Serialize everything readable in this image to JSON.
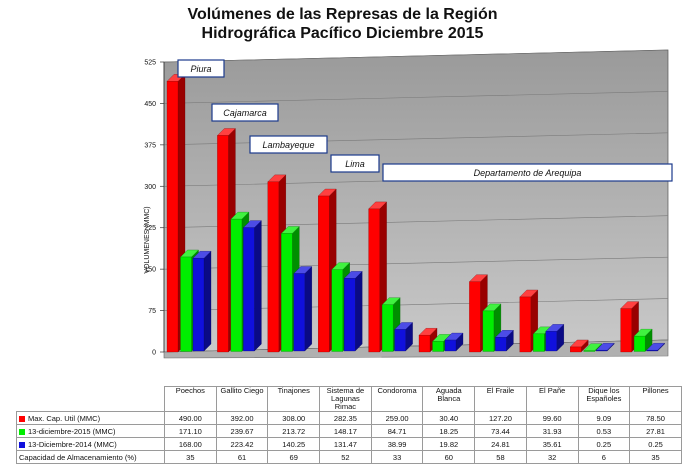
{
  "chart_data": {
    "type": "bar",
    "title_line1": "Volúmenes de las Represas de la Región",
    "title_line2": "Hidrográfica Pacífico Diciembre 2015",
    "ylabel": "VOLUMENES (MMC)",
    "ylim": [
      0,
      525
    ],
    "yticks": [
      "0",
      "75",
      "150",
      "225",
      "300",
      "375",
      "450",
      "525"
    ],
    "categories": [
      "Poechos",
      "Gallito Ciego",
      "Tinajones",
      "Sistema de Lagunas Rimac",
      "Condoroma",
      "Aguada Blanca",
      "El Fraile",
      "El Pañe",
      "Dique los Españoles",
      "Pillones"
    ],
    "series": [
      {
        "name": "Max. Cap. Util (MMC)",
        "color": "#ff0000",
        "values": [
          490.0,
          392.0,
          308.0,
          282.35,
          259.0,
          30.4,
          127.2,
          99.6,
          9.09,
          78.5
        ],
        "labels": [
          "490.00",
          "392.00",
          "308.00",
          "282.35",
          "259.00",
          "30.40",
          "127.20",
          "99.60",
          "9.09",
          "78.50"
        ]
      },
      {
        "name": "13-diciembre-2015 (MMC)",
        "color": "#00ee00",
        "values": [
          171.1,
          239.67,
          213.72,
          148.17,
          84.71,
          18.25,
          73.44,
          31.93,
          0.53,
          27.81
        ],
        "labels": [
          "171.10",
          "239.67",
          "213.72",
          "148.17",
          "84.71",
          "18.25",
          "73.44",
          "31.93",
          "0.53",
          "27.81"
        ]
      },
      {
        "name": "13-Diciembre-2014 (MMC)",
        "color": "#1010dd",
        "values": [
          168.0,
          223.42,
          140.25,
          131.47,
          38.99,
          19.82,
          24.81,
          35.61,
          0.25,
          0.25
        ],
        "labels": [
          "168.00",
          "223.42",
          "140.25",
          "131.47",
          "38.99",
          "19.82",
          "24.81",
          "35.61",
          "0.25",
          "0.25"
        ]
      }
    ],
    "capacity_row": {
      "name": "Capacidad de Almacenamiento (%)",
      "values": [
        "35",
        "61",
        "69",
        "52",
        "33",
        "60",
        "58",
        "32",
        "6",
        "35"
      ]
    },
    "region_labels": [
      "Piura",
      "Cajamarca",
      "Lambayeque",
      "Lima",
      "Departamento de Arequipa"
    ],
    "grid": true,
    "legend": "table-below"
  }
}
